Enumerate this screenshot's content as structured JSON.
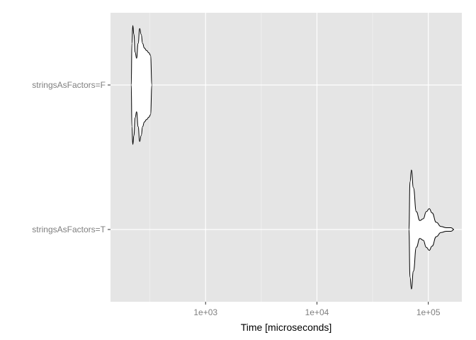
{
  "chart_data": {
    "type": "violin",
    "xlabel": "Time [microseconds]",
    "ylabel": "",
    "x_scale": "log10",
    "xlim": [
      140,
      200000
    ],
    "x_major_ticks": [
      1000,
      10000,
      100000
    ],
    "x_tick_labels": [
      "1e+03",
      "1e+04",
      "1e+05"
    ],
    "x_minor_gridlines": [
      316.2,
      3162.3,
      31622.8
    ],
    "categories": [
      "stringsAsFactors=F",
      "stringsAsFactors=T"
    ],
    "grid": true,
    "colors": {
      "panel_background": "#e5e5e5",
      "gridline": "#ffffff",
      "violin_fill": "#ffffff",
      "violin_outline": "#000000",
      "tick_label": "#7f7f7f"
    },
    "series": [
      {
        "category": "stringsAsFactors=F",
        "min": 215,
        "max": 330,
        "profile": [
          [
            215,
            0.0
          ],
          [
            218,
            0.7
          ],
          [
            222,
            1.0
          ],
          [
            227,
            0.85
          ],
          [
            233,
            0.55
          ],
          [
            240,
            0.45
          ],
          [
            248,
            0.7
          ],
          [
            256,
            0.95
          ],
          [
            264,
            0.85
          ],
          [
            272,
            0.7
          ],
          [
            282,
            0.62
          ],
          [
            295,
            0.58
          ],
          [
            310,
            0.54
          ],
          [
            320,
            0.5
          ],
          [
            330,
            0.0
          ]
        ]
      },
      {
        "category": "stringsAsFactors=T",
        "min": 67000,
        "max": 170000,
        "profile": [
          [
            67000,
            0.0
          ],
          [
            68500,
            0.8
          ],
          [
            70500,
            1.0
          ],
          [
            73500,
            0.7
          ],
          [
            78000,
            0.3
          ],
          [
            84000,
            0.15
          ],
          [
            90000,
            0.18
          ],
          [
            96000,
            0.3
          ],
          [
            102000,
            0.35
          ],
          [
            108000,
            0.28
          ],
          [
            118000,
            0.12
          ],
          [
            130000,
            0.05
          ],
          [
            145000,
            0.03
          ],
          [
            160000,
            0.03
          ],
          [
            170000,
            0.0
          ]
        ]
      }
    ]
  }
}
